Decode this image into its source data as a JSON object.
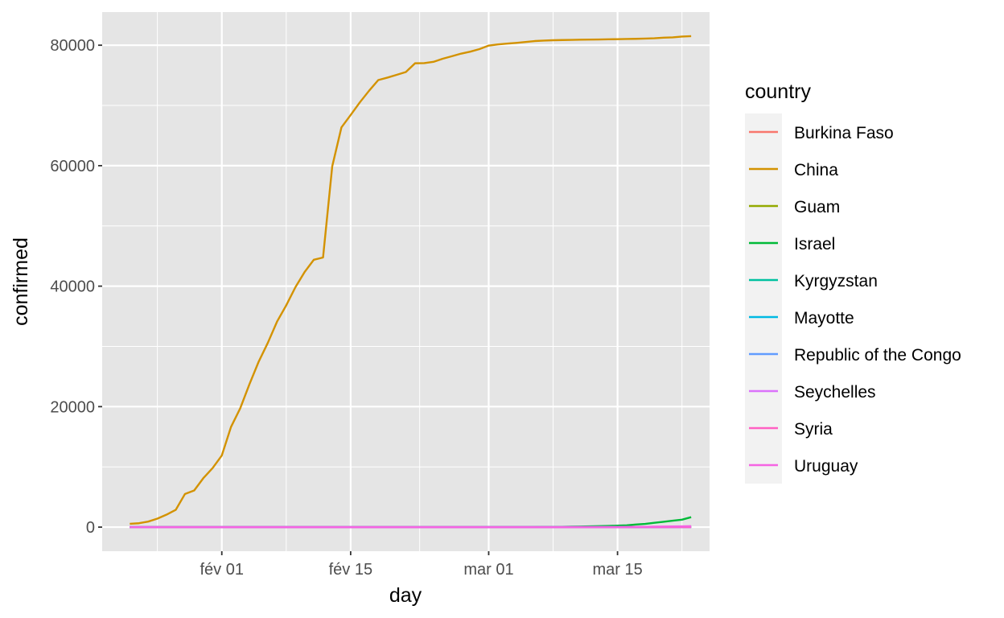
{
  "chart_data": {
    "type": "line",
    "title": "",
    "xlabel": "day",
    "ylabel": "confirmed",
    "x_ticks": [
      {
        "date": "2020-02-01",
        "label": "fév 01"
      },
      {
        "date": "2020-02-15",
        "label": "fév 15"
      },
      {
        "date": "2020-03-01",
        "label": "mar 01"
      },
      {
        "date": "2020-03-15",
        "label": "mar 15"
      }
    ],
    "xlim": [
      "2020-01-19",
      "2020-03-25"
    ],
    "y_ticks": [
      0,
      20000,
      40000,
      60000,
      80000
    ],
    "ylim": [
      -4000,
      85500
    ],
    "grid": true,
    "legend": {
      "title": "country",
      "position": "right"
    },
    "background": "#e5e5e5",
    "x": [
      "2020-01-22",
      "2020-01-23",
      "2020-01-24",
      "2020-01-25",
      "2020-01-26",
      "2020-01-27",
      "2020-01-28",
      "2020-01-29",
      "2020-01-30",
      "2020-01-31",
      "2020-02-01",
      "2020-02-02",
      "2020-02-03",
      "2020-02-04",
      "2020-02-05",
      "2020-02-06",
      "2020-02-07",
      "2020-02-08",
      "2020-02-09",
      "2020-02-10",
      "2020-02-11",
      "2020-02-12",
      "2020-02-13",
      "2020-02-14",
      "2020-02-15",
      "2020-02-16",
      "2020-02-17",
      "2020-02-18",
      "2020-02-19",
      "2020-02-20",
      "2020-02-21",
      "2020-02-22",
      "2020-02-23",
      "2020-02-24",
      "2020-02-25",
      "2020-02-26",
      "2020-02-27",
      "2020-02-28",
      "2020-02-29",
      "2020-03-01",
      "2020-03-02",
      "2020-03-03",
      "2020-03-04",
      "2020-03-05",
      "2020-03-06",
      "2020-03-07",
      "2020-03-08",
      "2020-03-09",
      "2020-03-10",
      "2020-03-11",
      "2020-03-12",
      "2020-03-13",
      "2020-03-14",
      "2020-03-15",
      "2020-03-16",
      "2020-03-17",
      "2020-03-18",
      "2020-03-19",
      "2020-03-20",
      "2020-03-21",
      "2020-03-22",
      "2020-03-23"
    ],
    "series": [
      {
        "name": "Burkina Faso",
        "color": "#F8766D",
        "values": [
          0,
          0,
          0,
          0,
          0,
          0,
          0,
          0,
          0,
          0,
          0,
          0,
          0,
          0,
          0,
          0,
          0,
          0,
          0,
          0,
          0,
          0,
          0,
          0,
          0,
          0,
          0,
          0,
          0,
          0,
          0,
          0,
          0,
          0,
          0,
          0,
          0,
          0,
          0,
          0,
          0,
          0,
          0,
          0,
          0,
          0,
          0,
          0,
          0,
          2,
          2,
          2,
          2,
          3,
          15,
          20,
          27,
          33,
          40,
          64,
          75,
          99
        ]
      },
      {
        "name": "China",
        "color": "#D39200",
        "values": [
          548,
          643,
          920,
          1406,
          2075,
          2877,
          5509,
          6087,
          8141,
          9802,
          11891,
          16630,
          19716,
          23707,
          27440,
          30587,
          34110,
          36814,
          39829,
          42354,
          44386,
          44759,
          59895,
          66358,
          68413,
          70513,
          72434,
          74211,
          74619,
          75077,
          75550,
          77001,
          77022,
          77241,
          77754,
          78166,
          78600,
          78928,
          79356,
          79932,
          80136,
          80261,
          80386,
          80537,
          80690,
          80770,
          80823,
          80860,
          80887,
          80921,
          80932,
          80945,
          80977,
          81003,
          81033,
          81058,
          81102,
          81156,
          81250,
          81305,
          81435,
          81498
        ]
      },
      {
        "name": "Guam",
        "color": "#93AA00",
        "values": [
          0,
          0,
          0,
          0,
          0,
          0,
          0,
          0,
          0,
          0,
          0,
          0,
          0,
          0,
          0,
          0,
          0,
          0,
          0,
          0,
          0,
          0,
          0,
          0,
          0,
          0,
          0,
          0,
          0,
          0,
          0,
          0,
          0,
          0,
          0,
          0,
          0,
          0,
          0,
          0,
          0,
          0,
          0,
          0,
          0,
          0,
          0,
          0,
          0,
          0,
          0,
          0,
          0,
          3,
          3,
          5,
          12,
          14,
          15,
          27,
          29,
          29
        ]
      },
      {
        "name": "Israel",
        "color": "#00BA38",
        "values": [
          0,
          0,
          0,
          0,
          0,
          0,
          0,
          0,
          0,
          0,
          0,
          0,
          0,
          0,
          0,
          0,
          0,
          0,
          0,
          0,
          0,
          0,
          0,
          0,
          0,
          0,
          0,
          0,
          0,
          0,
          1,
          1,
          1,
          1,
          2,
          2,
          3,
          3,
          5,
          10,
          10,
          12,
          15,
          21,
          25,
          39,
          39,
          50,
          75,
          97,
          127,
          161,
          193,
          250,
          304,
          427,
          529,
          712,
          883,
          1071,
          1238,
          1656
        ]
      },
      {
        "name": "Kyrgyzstan",
        "color": "#00C19F",
        "values": [
          0,
          0,
          0,
          0,
          0,
          0,
          0,
          0,
          0,
          0,
          0,
          0,
          0,
          0,
          0,
          0,
          0,
          0,
          0,
          0,
          0,
          0,
          0,
          0,
          0,
          0,
          0,
          0,
          0,
          0,
          0,
          0,
          0,
          0,
          0,
          0,
          0,
          0,
          0,
          0,
          0,
          0,
          0,
          0,
          0,
          0,
          0,
          0,
          0,
          0,
          0,
          0,
          0,
          0,
          0,
          0,
          3,
          3,
          6,
          14,
          14,
          16
        ]
      },
      {
        "name": "Mayotte",
        "color": "#00B9E3",
        "values": [
          0,
          0,
          0,
          0,
          0,
          0,
          0,
          0,
          0,
          0,
          0,
          0,
          0,
          0,
          0,
          0,
          0,
          0,
          0,
          0,
          0,
          0,
          0,
          0,
          0,
          0,
          0,
          0,
          0,
          0,
          0,
          0,
          0,
          0,
          0,
          0,
          0,
          0,
          0,
          0,
          0,
          0,
          0,
          0,
          0,
          0,
          0,
          0,
          0,
          0,
          0,
          0,
          1,
          1,
          1,
          3,
          3,
          4,
          6,
          7,
          11,
          24
        ]
      },
      {
        "name": "Republic of the Congo",
        "color": "#619CFF",
        "values": [
          0,
          0,
          0,
          0,
          0,
          0,
          0,
          0,
          0,
          0,
          0,
          0,
          0,
          0,
          0,
          0,
          0,
          0,
          0,
          0,
          0,
          0,
          0,
          0,
          0,
          0,
          0,
          0,
          0,
          0,
          0,
          0,
          0,
          0,
          0,
          0,
          0,
          0,
          0,
          0,
          0,
          0,
          0,
          0,
          0,
          0,
          0,
          0,
          0,
          0,
          0,
          0,
          0,
          1,
          1,
          1,
          1,
          3,
          3,
          3,
          3,
          3
        ]
      },
      {
        "name": "Seychelles",
        "color": "#DB72FB",
        "values": [
          0,
          0,
          0,
          0,
          0,
          0,
          0,
          0,
          0,
          0,
          0,
          0,
          0,
          0,
          0,
          0,
          0,
          0,
          0,
          0,
          0,
          0,
          0,
          0,
          0,
          0,
          0,
          0,
          0,
          0,
          0,
          0,
          0,
          0,
          0,
          0,
          0,
          0,
          0,
          0,
          0,
          0,
          0,
          0,
          0,
          0,
          0,
          0,
          0,
          0,
          0,
          0,
          0,
          2,
          3,
          4,
          4,
          6,
          7,
          7,
          7,
          7
        ]
      },
      {
        "name": "Syria",
        "color": "#FF61C3",
        "values": [
          0,
          0,
          0,
          0,
          0,
          0,
          0,
          0,
          0,
          0,
          0,
          0,
          0,
          0,
          0,
          0,
          0,
          0,
          0,
          0,
          0,
          0,
          0,
          0,
          0,
          0,
          0,
          0,
          0,
          0,
          0,
          0,
          0,
          0,
          0,
          0,
          0,
          0,
          0,
          0,
          0,
          0,
          0,
          0,
          0,
          0,
          0,
          0,
          0,
          0,
          0,
          0,
          0,
          0,
          0,
          0,
          0,
          0,
          0,
          0,
          1,
          1
        ]
      },
      {
        "name": "Uruguay",
        "color": "#F564E3",
        "values": [
          0,
          0,
          0,
          0,
          0,
          0,
          0,
          0,
          0,
          0,
          0,
          0,
          0,
          0,
          0,
          0,
          0,
          0,
          0,
          0,
          0,
          0,
          0,
          0,
          0,
          0,
          0,
          0,
          0,
          0,
          0,
          0,
          0,
          0,
          0,
          0,
          0,
          0,
          0,
          0,
          0,
          0,
          0,
          0,
          0,
          0,
          0,
          0,
          0,
          0,
          0,
          0,
          0,
          4,
          8,
          29,
          50,
          79,
          94,
          110,
          135,
          158
        ]
      }
    ]
  }
}
